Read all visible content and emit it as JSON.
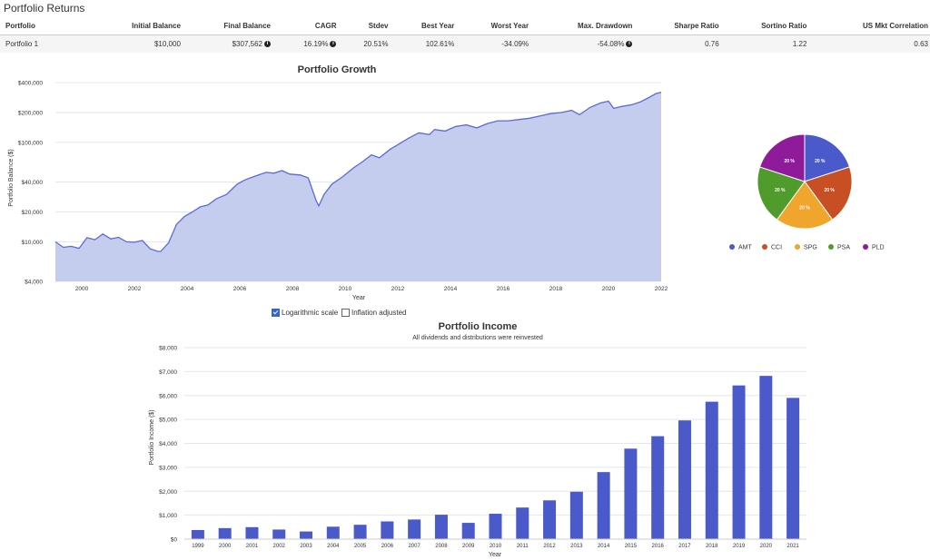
{
  "returns": {
    "title": "Portfolio Returns",
    "headers": [
      "Portfolio",
      "Initial Balance",
      "Final Balance",
      "CAGR",
      "Stdev",
      "Best Year",
      "Worst Year",
      "Max. Drawdown",
      "Sharpe Ratio",
      "Sortino Ratio",
      "US Mkt Correlation"
    ],
    "row": {
      "portfolio": "Portfolio 1",
      "initial_balance": "$10,000",
      "final_balance": "$307,562",
      "cagr": "16.19%",
      "stdev": "20.51%",
      "best_year": "102.61%",
      "worst_year": "-34.09%",
      "max_drawdown": "-54.08%",
      "sharpe": "0.76",
      "sortino": "1.22",
      "us_mkt_corr": "0.63"
    }
  },
  "options": {
    "log_label": "Logarithmic scale",
    "log_checked": true,
    "inflation_label": "Inflation adjusted",
    "inflation_checked": false
  },
  "colors": {
    "growth_line": "#5b6ad6",
    "growth_fill": "#c5cdef",
    "bar": "#4a5acb",
    "grid": "#e6e6e6"
  },
  "chart_data": [
    {
      "type": "area",
      "title": "Portfolio Growth",
      "xlabel": "Year",
      "ylabel": "Portfolio Balance ($)",
      "y_scale": "log",
      "ylim": [
        4000,
        400000
      ],
      "yticks": [
        4000,
        10000,
        20000,
        40000,
        100000,
        200000,
        400000
      ],
      "ytick_labels": [
        "$4,000",
        "$10,000",
        "$20,000",
        "$40,000",
        "$100,000",
        "$200,000",
        "$400,000"
      ],
      "xlim": [
        1999,
        2022
      ],
      "xticks": [
        2000,
        2002,
        2004,
        2006,
        2008,
        2010,
        2012,
        2014,
        2016,
        2018,
        2020,
        2022
      ],
      "grid": true,
      "series": [
        {
          "x": [
            1999.0,
            1999.3,
            1999.6,
            1999.9,
            2000.2,
            2000.5,
            2000.8,
            2001.1,
            2001.4,
            2001.7,
            2002.0,
            2002.3,
            2002.6,
            2002.9,
            2003.0,
            2003.3,
            2003.6,
            2003.9,
            2004.2,
            2004.5,
            2004.8,
            2005.1,
            2005.5,
            2005.9,
            2006.2,
            2006.6,
            2007.0,
            2007.3,
            2007.6,
            2007.9,
            2008.3,
            2008.6,
            2008.9,
            2009.0,
            2009.2,
            2009.5,
            2009.9,
            2010.3,
            2010.7,
            2011.0,
            2011.3,
            2011.7,
            2012.0,
            2012.4,
            2012.8,
            2013.2,
            2013.4,
            2013.8,
            2014.2,
            2014.6,
            2015.0,
            2015.4,
            2015.8,
            2016.2,
            2016.6,
            2017.0,
            2017.4,
            2017.8,
            2018.2,
            2018.6,
            2018.9,
            2019.3,
            2019.7,
            2020.0,
            2020.2,
            2020.5,
            2020.9,
            2021.2,
            2021.5,
            2021.8,
            2022.0
          ],
          "y": [
            10000,
            8800,
            9000,
            8600,
            11000,
            10500,
            12000,
            10700,
            11100,
            10000,
            9900,
            10300,
            8500,
            8000,
            8000,
            9800,
            15000,
            18000,
            20000,
            22500,
            23500,
            27000,
            30000,
            38000,
            42000,
            46000,
            50000,
            49000,
            52000,
            48000,
            47000,
            44000,
            26000,
            23000,
            30000,
            38000,
            45000,
            55000,
            65000,
            75000,
            70000,
            85000,
            95000,
            110000,
            125000,
            120000,
            135000,
            130000,
            145000,
            150000,
            140000,
            155000,
            165000,
            165000,
            170000,
            175000,
            185000,
            195000,
            200000,
            210000,
            190000,
            225000,
            250000,
            260000,
            220000,
            230000,
            240000,
            255000,
            280000,
            310000,
            320000
          ]
        }
      ]
    },
    {
      "type": "pie",
      "legend": "bottom",
      "slices": [
        {
          "name": "AMT",
          "value": 20,
          "label": "20 %",
          "color": "#4a5acb"
        },
        {
          "name": "CCI",
          "value": 20,
          "label": "20 %",
          "color": "#c84f24"
        },
        {
          "name": "SPG",
          "value": 20,
          "label": "20 %",
          "color": "#f0a62d"
        },
        {
          "name": "PSA",
          "value": 20,
          "label": "20 %",
          "color": "#4f9b2b"
        },
        {
          "name": "PLD",
          "value": 20,
          "label": "20 %",
          "color": "#8f1b9b"
        }
      ]
    },
    {
      "type": "bar",
      "title": "Portfolio Income",
      "subtitle": "All dividends and distributions were reinvested",
      "xlabel": "Year",
      "ylabel": "Portfolio Income ($)",
      "ylim": [
        0,
        8000
      ],
      "yticks": [
        0,
        1000,
        2000,
        3000,
        4000,
        5000,
        6000,
        7000,
        8000
      ],
      "ytick_labels": [
        "$0",
        "$1,000",
        "$2,000",
        "$3,000",
        "$4,000",
        "$5,000",
        "$6,000",
        "$7,000",
        "$8,000"
      ],
      "grid": true,
      "categories": [
        "1999",
        "2000",
        "2001",
        "2002",
        "2003",
        "2004",
        "2005",
        "2006",
        "2007",
        "2008",
        "2009",
        "2010",
        "2011",
        "2012",
        "2013",
        "2014",
        "2015",
        "2016",
        "2017",
        "2018",
        "2019",
        "2020",
        "2021"
      ],
      "values": [
        380,
        460,
        500,
        400,
        320,
        520,
        600,
        740,
        820,
        1020,
        680,
        1060,
        1320,
        1620,
        1980,
        2800,
        3780,
        4300,
        4960,
        5740,
        6420,
        6820,
        5900
      ]
    }
  ]
}
